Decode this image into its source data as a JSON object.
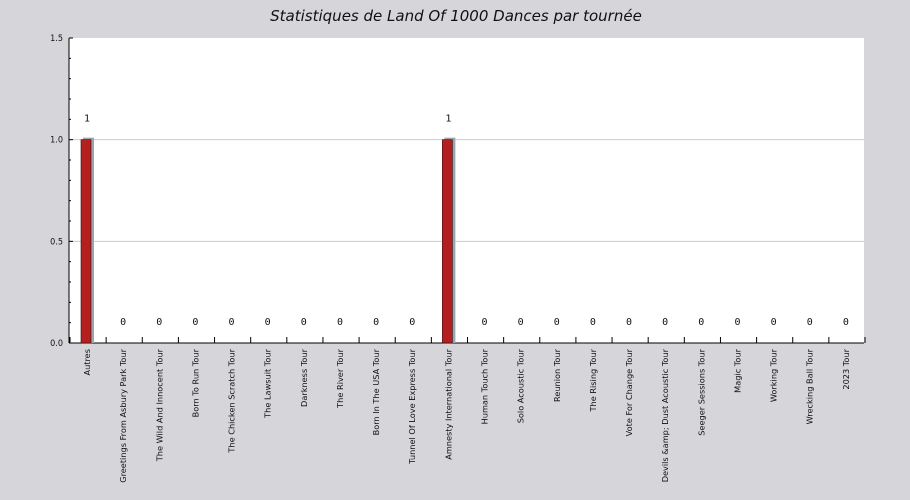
{
  "chart_data": {
    "type": "bar",
    "title": "Statistiques de Land Of 1000 Dances par tournée",
    "xlabel": "",
    "ylabel": "",
    "ylim": [
      0,
      1.5
    ],
    "yticks": [
      "0.0",
      "0.5",
      "1.0",
      "1.5"
    ],
    "grid": true,
    "legend": "none",
    "categories": [
      "Autres",
      "Greetings From Asbury Park Tour",
      "The Wild And Innocent Tour",
      "Born To Run Tour",
      "The Chicken Scratch Tour",
      "The Lawsuit Tour",
      "Darkness Tour",
      "The River Tour",
      "Born In The USA Tour",
      "Tunnel Of Love Express Tour",
      "Amnesty International Tour",
      "Human Touch Tour",
      "Solo Acoustic Tour",
      "Reunion Tour",
      "The Rising Tour",
      "Vote For Change Tour",
      "Devils &amp; Dust Acoustic Tour",
      "Seeger Sessions Tour",
      "Magic Tour",
      "Working Tour",
      "Wrecking Ball Tour",
      "2023 Tour"
    ],
    "values": [
      1,
      0,
      0,
      0,
      0,
      0,
      0,
      0,
      0,
      0,
      1,
      0,
      0,
      0,
      0,
      0,
      0,
      0,
      0,
      0,
      0,
      0
    ],
    "colors": {
      "bar": "#b41f1f",
      "bar_shadow": "#9aa7b1",
      "plot_bg": "#ffffff",
      "page_bg": "#d6d5da",
      "grid": "#cccccc"
    }
  }
}
